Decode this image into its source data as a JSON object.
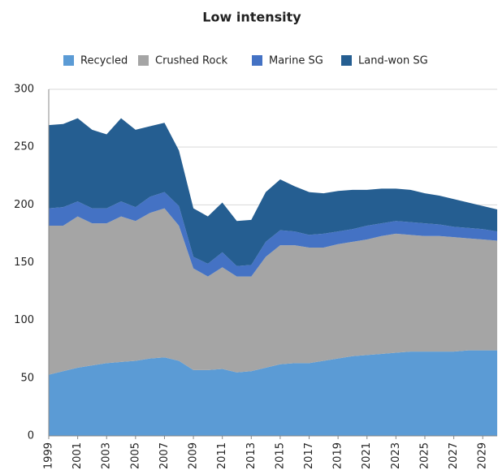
{
  "chart_data": {
    "type": "stacked_area",
    "title": "Low intensity",
    "x": [
      1999,
      2000,
      2001,
      2002,
      2003,
      2004,
      2005,
      2006,
      2007,
      2008,
      2009,
      2010,
      2011,
      2012,
      2013,
      2014,
      2015,
      2016,
      2017,
      2018,
      2019,
      2020,
      2021,
      2022,
      2023,
      2024,
      2025,
      2026,
      2027,
      2028,
      2029,
      2030
    ],
    "xlim": [
      1999,
      2030
    ],
    "xticks": [
      1999,
      2001,
      2003,
      2005,
      2007,
      2009,
      2011,
      2013,
      2015,
      2017,
      2019,
      2021,
      2023,
      2025,
      2027,
      2029
    ],
    "ylim": [
      0,
      300
    ],
    "yticks": [
      0,
      50,
      100,
      150,
      200,
      250,
      300
    ],
    "grid": true,
    "legend": "top",
    "series": [
      {
        "name": "Recycled",
        "color": "#5b9bd5",
        "values": [
          53,
          56,
          59,
          61,
          63,
          64,
          65,
          67,
          68,
          65,
          57,
          57,
          58,
          55,
          56,
          59,
          62,
          63,
          63,
          65,
          67,
          69,
          70,
          71,
          72,
          73,
          73,
          73,
          73,
          74,
          74,
          74
        ]
      },
      {
        "name": "Crushed Rock",
        "color": "#a5a5a5",
        "values": [
          129,
          126,
          131,
          123,
          121,
          126,
          121,
          126,
          129,
          117,
          88,
          81,
          88,
          83,
          82,
          96,
          103,
          102,
          100,
          98,
          99,
          99,
          100,
          102,
          103,
          101,
          100,
          100,
          99,
          97,
          96,
          95
        ]
      },
      {
        "name": "Marine SG",
        "color": "#4472c4",
        "values": [
          15,
          16,
          13,
          13,
          13,
          13,
          12,
          14,
          14,
          17,
          10,
          11,
          13,
          9,
          10,
          13,
          13,
          12,
          11,
          12,
          11,
          11,
          12,
          11,
          11,
          11,
          11,
          10,
          9,
          9,
          9,
          8
        ]
      },
      {
        "name": "Land-won SG",
        "color": "#255e91",
        "values": [
          72,
          72,
          72,
          68,
          64,
          72,
          67,
          61,
          60,
          48,
          42,
          41,
          43,
          39,
          39,
          43,
          44,
          39,
          37,
          35,
          35,
          34,
          31,
          30,
          28,
          28,
          26,
          25,
          24,
          22,
          20,
          19
        ]
      }
    ]
  }
}
